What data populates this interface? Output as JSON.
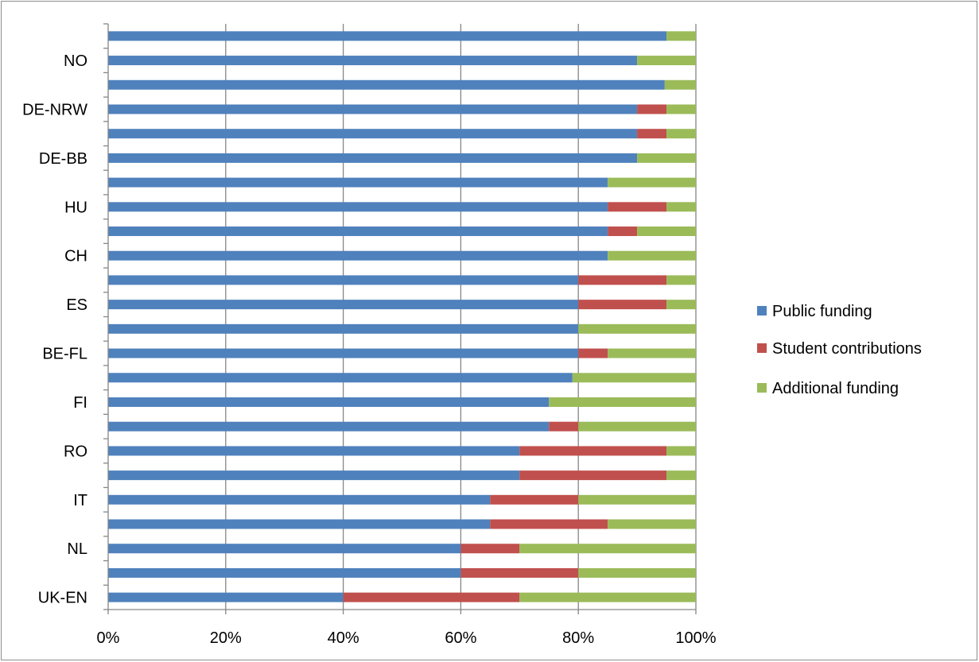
{
  "chart_data": {
    "type": "bar",
    "orientation": "horizontal",
    "stacked": "percent",
    "categories": [
      "UK-EN",
      "",
      "NL",
      "",
      "IT",
      "",
      "RO",
      "",
      "FI",
      "",
      "BE-FL",
      "",
      "ES",
      "",
      "CH",
      "",
      "HU",
      "",
      "DE-BB",
      "",
      "DE-NRW",
      "",
      "NO",
      ""
    ],
    "series": [
      {
        "name": "Public funding",
        "color": "#4f81bd",
        "values": [
          40,
          60,
          60,
          65,
          65,
          70,
          70,
          75,
          75,
          79,
          80,
          80,
          80,
          80,
          85,
          85,
          85,
          85,
          90,
          90,
          90,
          94.7,
          90,
          95
        ]
      },
      {
        "name": "Student contributions",
        "color": "#c0504d",
        "values": [
          30,
          20,
          10,
          20,
          15,
          25,
          25,
          5,
          0,
          0,
          5,
          0,
          15,
          15,
          0,
          5,
          10,
          0,
          0,
          5,
          5,
          0,
          0,
          0
        ]
      },
      {
        "name": "Additional funding",
        "color": "#9bbb59",
        "values": [
          30,
          20,
          30,
          15,
          20,
          5,
          5,
          20,
          25,
          21,
          15,
          20,
          5,
          5,
          15,
          10,
          5,
          15,
          10,
          5,
          5,
          5.3,
          10,
          5
        ]
      }
    ],
    "xlim": [
      0,
      100
    ],
    "x_ticks": [
      "0%",
      "20%",
      "40%",
      "60%",
      "80%",
      "100%"
    ],
    "grid": true,
    "legend_position": "right",
    "title": "",
    "xlabel": "",
    "ylabel": ""
  }
}
